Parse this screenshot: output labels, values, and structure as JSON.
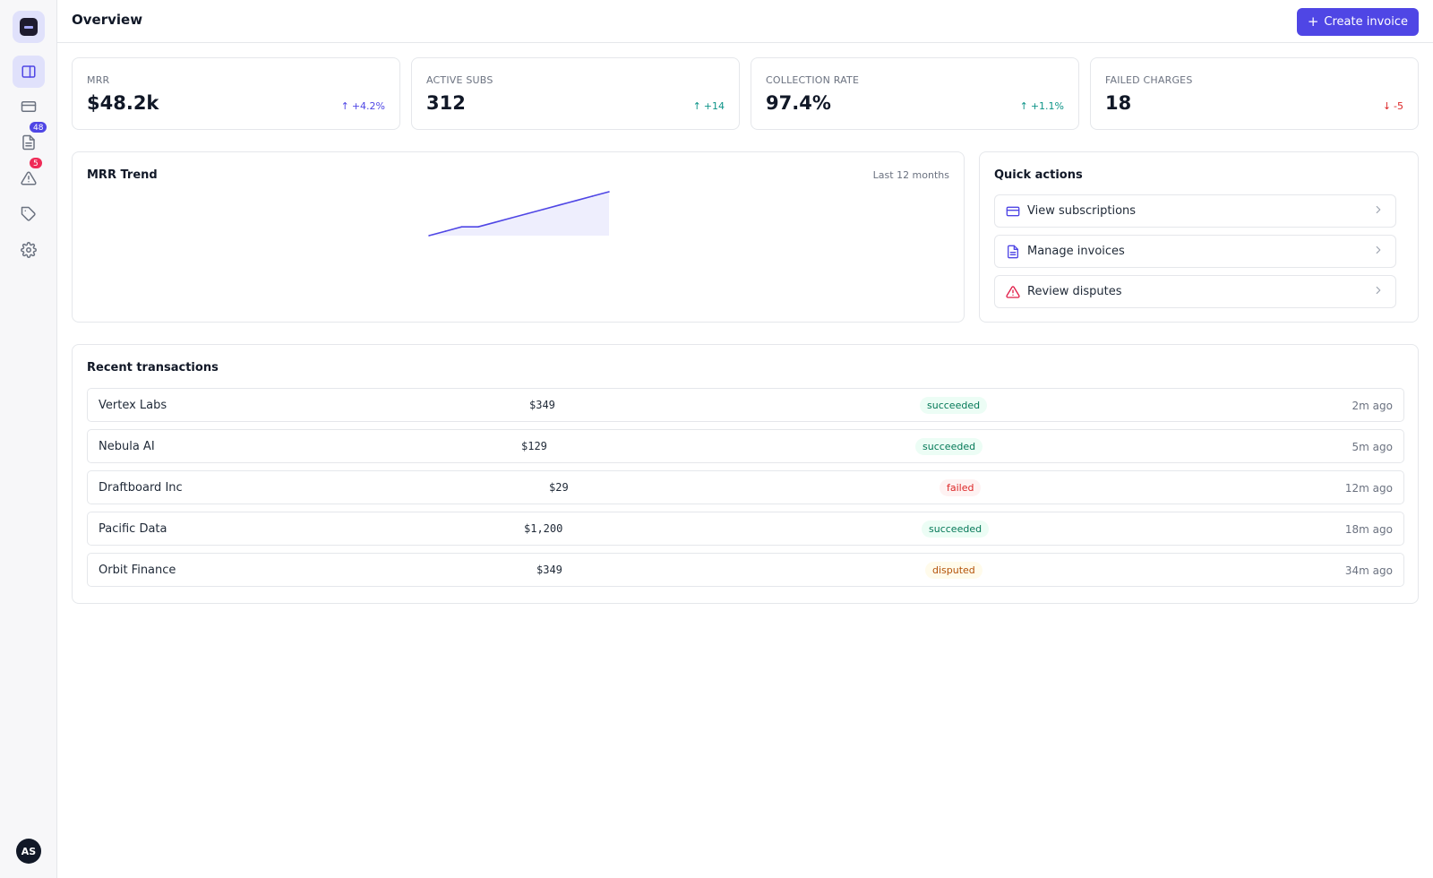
{
  "header": {
    "title": "Overview",
    "create_label": "Create invoice"
  },
  "sidebar": {
    "items": [
      {
        "name": "dashboard"
      },
      {
        "name": "payments"
      },
      {
        "name": "invoices",
        "badge": "48"
      },
      {
        "name": "disputes",
        "badge": "5"
      },
      {
        "name": "products"
      },
      {
        "name": "settings"
      }
    ],
    "avatar_initials": "AS"
  },
  "stats": [
    {
      "label": "MRR",
      "value": "$48.2k",
      "delta": "+4.2%",
      "direction": "up",
      "color": "#4f46e5"
    },
    {
      "label": "ACTIVE SUBS",
      "value": "312",
      "delta": "+14",
      "direction": "up",
      "color": "#0d9488"
    },
    {
      "label": "COLLECTION RATE",
      "value": "97.4%",
      "delta": "+1.1%",
      "direction": "up",
      "color": "#0d9488"
    },
    {
      "label": "FAILED CHARGES",
      "value": "18",
      "delta": "-5",
      "direction": "down",
      "color": "#dc2626"
    }
  ],
  "trend": {
    "title": "MRR Trend",
    "range_label": "Last 12 months"
  },
  "chart_data": {
    "type": "area",
    "title": "MRR Trend",
    "x": [
      1,
      2,
      3,
      4,
      5,
      6,
      7,
      8,
      9,
      10,
      11,
      12
    ],
    "values": [
      0,
      2,
      4,
      4,
      6,
      8,
      10,
      12,
      14,
      16,
      18,
      20
    ],
    "color": "#4f46e5",
    "grid": false
  },
  "quick_actions": {
    "title": "Quick actions",
    "items": [
      {
        "label": "View subscriptions",
        "icon": "credit-card-icon"
      },
      {
        "label": "Manage invoices",
        "icon": "document-icon"
      },
      {
        "label": "Review disputes",
        "icon": "warning-triangle-icon"
      }
    ]
  },
  "transactions": {
    "title": "Recent transactions",
    "rows": [
      {
        "customer": "Vertex Labs",
        "amount": "$349",
        "status": "succeeded",
        "time": "2m ago"
      },
      {
        "customer": "Nebula AI",
        "amount": "$129",
        "status": "succeeded",
        "time": "5m ago"
      },
      {
        "customer": "Draftboard Inc",
        "amount": "$29",
        "status": "failed",
        "time": "12m ago"
      },
      {
        "customer": "Pacific Data",
        "amount": "$1,200",
        "status": "succeeded",
        "time": "18m ago"
      },
      {
        "customer": "Orbit Finance",
        "amount": "$349",
        "status": "disputed",
        "time": "34m ago"
      }
    ]
  },
  "colors": {
    "accent": "#4f46e5",
    "success": "#047857",
    "danger": "#dc2626",
    "warning": "#b45309"
  }
}
